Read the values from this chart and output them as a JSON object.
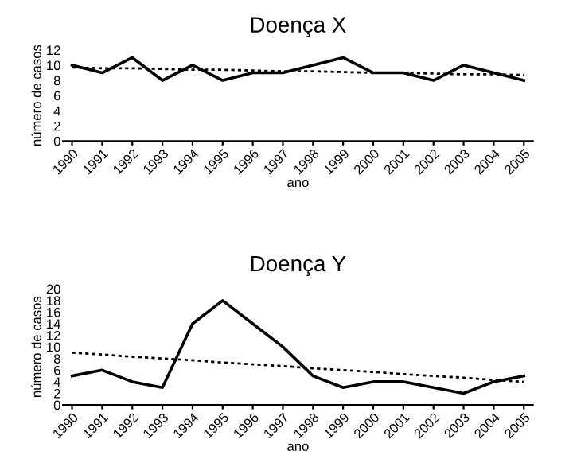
{
  "chart_data": [
    {
      "type": "line",
      "title": "Doença X",
      "xlabel": "ano",
      "ylabel": "número de casos",
      "categories": [
        "1990",
        "1991",
        "1992",
        "1993",
        "1994",
        "1995",
        "1996",
        "1997",
        "1998",
        "1999",
        "2000",
        "2001",
        "2002",
        "2003",
        "2004",
        "2005"
      ],
      "ylim": [
        0,
        12
      ],
      "yticks": [
        0,
        2,
        4,
        6,
        8,
        10,
        12
      ],
      "grid": false,
      "series": [
        {
          "color": "#000000",
          "line_style": "solid",
          "values": [
            10,
            9,
            11,
            8,
            10,
            8,
            9,
            9,
            10,
            11,
            9,
            9,
            8,
            10,
            9,
            8
          ]
        },
        {
          "color": "#000000",
          "line_style": "dotted",
          "values": [
            9.7,
            9.6,
            9.6,
            9.5,
            9.4,
            9.4,
            9.3,
            9.2,
            9.2,
            9.1,
            9.0,
            9.0,
            8.9,
            8.8,
            8.8,
            8.7
          ]
        }
      ]
    },
    {
      "type": "line",
      "title": "Doença Y",
      "xlabel": "ano",
      "ylabel": "número de casos",
      "categories": [
        "1990",
        "1991",
        "1992",
        "1993",
        "1994",
        "1995",
        "1996",
        "1997",
        "1998",
        "1999",
        "2000",
        "2001",
        "2002",
        "2003",
        "2004",
        "2005"
      ],
      "ylim": [
        0,
        20
      ],
      "yticks": [
        0,
        2,
        4,
        6,
        8,
        10,
        12,
        14,
        16,
        18,
        20
      ],
      "grid": false,
      "series": [
        {
          "color": "#000000",
          "line_style": "solid",
          "values": [
            5,
            6,
            4,
            3,
            14,
            18,
            14,
            10,
            5,
            3,
            4,
            4,
            3,
            2,
            4,
            5
          ]
        },
        {
          "color": "#000000",
          "line_style": "dotted",
          "values": [
            9,
            8.7,
            8.3,
            8,
            7.7,
            7.3,
            7,
            6.7,
            6.3,
            6,
            5.7,
            5.3,
            5,
            4.7,
            4.3,
            4
          ]
        }
      ]
    }
  ]
}
